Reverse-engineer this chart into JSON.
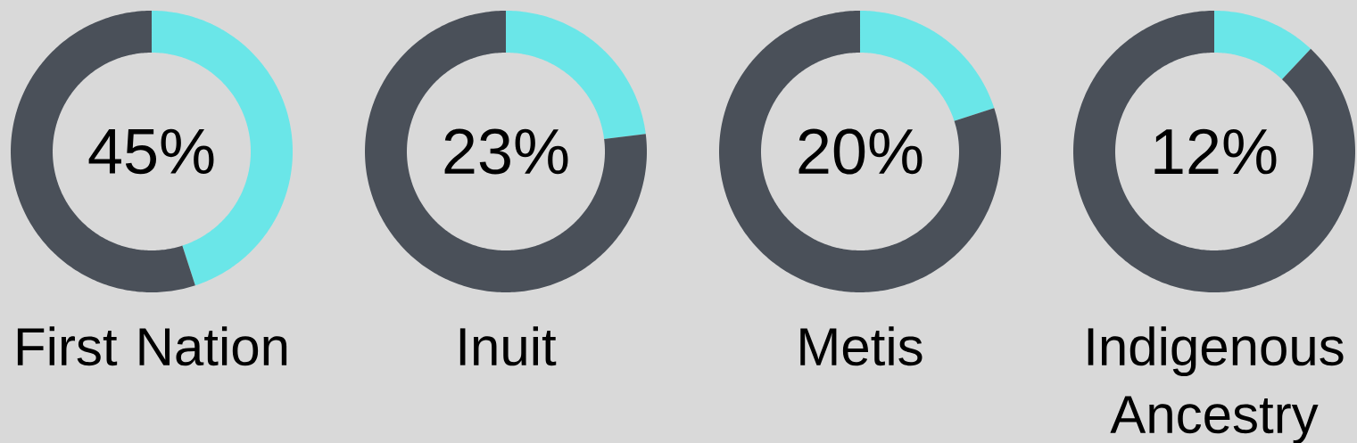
{
  "chart_data": [
    {
      "type": "donut",
      "title": "First Nation",
      "categories": [
        null,
        null
      ],
      "values": [
        45,
        55
      ],
      "colors": [
        "#6ae6e8",
        "#4a5059"
      ],
      "annotations": [
        "45%"
      ]
    },
    {
      "type": "donut",
      "title": "Inuit",
      "categories": [
        null,
        null
      ],
      "values": [
        23,
        77
      ],
      "colors": [
        "#6ae6e8",
        "#4a5059"
      ],
      "annotations": [
        "23%"
      ]
    },
    {
      "type": "donut",
      "title": "Metis",
      "categories": [
        null,
        null
      ],
      "values": [
        20,
        80
      ],
      "colors": [
        "#6ae6e8",
        "#4a5059"
      ],
      "annotations": [
        "20%"
      ]
    },
    {
      "type": "donut",
      "title": "Indigenous Ancestry",
      "categories": [
        null,
        null
      ],
      "values": [
        12,
        88
      ],
      "colors": [
        "#6ae6e8",
        "#4a5059"
      ],
      "annotations": [
        "12%"
      ]
    }
  ]
}
